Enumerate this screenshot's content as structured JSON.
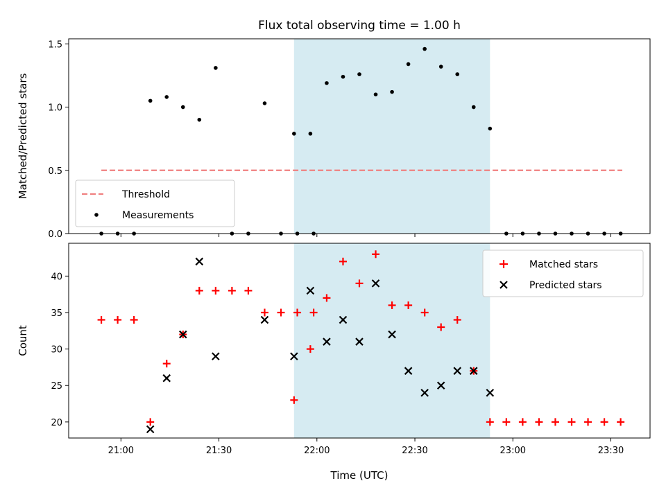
{
  "chart_data": [
    {
      "type": "scatter",
      "title": "Flux total observing time = 1.00 h",
      "ylabel": "Matched/Predicted stars",
      "xlabel": "",
      "x_unit": "HH:MM",
      "xlim": [
        "20:44",
        "23:42"
      ],
      "ylim": [
        0,
        1.54
      ],
      "yticks": [
        0.0,
        0.5,
        1.0,
        1.5
      ],
      "ytick_labels": [
        "0.0",
        "0.5",
        "1.0",
        "1.5"
      ],
      "xticks": [
        "21:00",
        "21:30",
        "22:00",
        "22:30",
        "23:00",
        "23:30"
      ],
      "shaded_region": {
        "x_start": "21:53",
        "x_end": "22:53",
        "color": "#add8e6"
      },
      "legend_position": "lower-left",
      "threshold": {
        "name": "Threshold",
        "value": 0.5,
        "x_start": "20:54",
        "x_end": "23:43",
        "color": "#f08080",
        "style": "dashed"
      },
      "series": [
        {
          "name": "Measurements",
          "color": "#000000",
          "marker": "dot",
          "points": [
            [
              "20:54",
              0
            ],
            [
              "20:59",
              0
            ],
            [
              "21:04",
              0
            ],
            [
              "21:09",
              1.05
            ],
            [
              "21:14",
              1.08
            ],
            [
              "21:19",
              1.0
            ],
            [
              "21:24",
              0.9
            ],
            [
              "21:29",
              1.31
            ],
            [
              "21:34",
              0
            ],
            [
              "21:39",
              0
            ],
            [
              "21:44",
              1.03
            ],
            [
              "21:49",
              0
            ],
            [
              "21:54",
              0
            ],
            [
              "21:59",
              0
            ],
            [
              "21:53",
              0.79
            ],
            [
              "21:58",
              0.79
            ],
            [
              "22:03",
              1.19
            ],
            [
              "22:08",
              1.24
            ],
            [
              "22:13",
              1.26
            ],
            [
              "22:18",
              1.1
            ],
            [
              "22:23",
              1.12
            ],
            [
              "22:28",
              1.34
            ],
            [
              "22:33",
              1.46
            ],
            [
              "22:38",
              1.32
            ],
            [
              "22:43",
              1.26
            ],
            [
              "22:48",
              1.0
            ],
            [
              "22:53",
              0.83
            ],
            [
              "22:58",
              0
            ],
            [
              "23:03",
              0
            ],
            [
              "23:08",
              0
            ],
            [
              "23:13",
              0
            ],
            [
              "23:18",
              0
            ],
            [
              "23:23",
              0
            ],
            [
              "23:28",
              0
            ],
            [
              "23:33",
              0
            ]
          ]
        }
      ],
      "legend": [
        "Threshold",
        "Measurements"
      ]
    },
    {
      "type": "scatter",
      "title": "",
      "ylabel": "Count",
      "xlabel": "Time (UTC)",
      "x_unit": "HH:MM",
      "xlim": [
        "20:44",
        "23:42"
      ],
      "ylim": [
        17.8,
        44.5
      ],
      "yticks": [
        20,
        25,
        30,
        35,
        40
      ],
      "ytick_labels": [
        "20",
        "25",
        "30",
        "35",
        "40"
      ],
      "xticks": [
        "21:00",
        "21:30",
        "22:00",
        "22:30",
        "23:00",
        "23:30"
      ],
      "xtick_labels": [
        "21:00",
        "21:30",
        "22:00",
        "22:30",
        "23:00",
        "23:30"
      ],
      "shaded_region": {
        "x_start": "21:53",
        "x_end": "22:53",
        "color": "#add8e6"
      },
      "legend_position": "upper-right",
      "series": [
        {
          "name": "Matched stars",
          "color": "#ff0000",
          "marker": "plus",
          "points": [
            [
              "20:54",
              34
            ],
            [
              "20:59",
              34
            ],
            [
              "21:04",
              34
            ],
            [
              "21:09",
              20
            ],
            [
              "21:14",
              28
            ],
            [
              "21:19",
              32
            ],
            [
              "21:24",
              38
            ],
            [
              "21:29",
              38
            ],
            [
              "21:34",
              38
            ],
            [
              "21:39",
              38
            ],
            [
              "21:44",
              35
            ],
            [
              "21:49",
              35
            ],
            [
              "21:54",
              35
            ],
            [
              "21:59",
              35
            ],
            [
              "21:53",
              23
            ],
            [
              "21:58",
              30
            ],
            [
              "22:03",
              37
            ],
            [
              "22:08",
              42
            ],
            [
              "22:13",
              39
            ],
            [
              "22:18",
              43
            ],
            [
              "22:23",
              36
            ],
            [
              "22:28",
              36
            ],
            [
              "22:33",
              35
            ],
            [
              "22:38",
              33
            ],
            [
              "22:43",
              34
            ],
            [
              "22:48",
              27
            ],
            [
              "22:53",
              20
            ],
            [
              "22:58",
              20
            ],
            [
              "23:03",
              20
            ],
            [
              "23:08",
              20
            ],
            [
              "23:13",
              20
            ],
            [
              "23:18",
              20
            ],
            [
              "23:23",
              20
            ],
            [
              "23:28",
              20
            ],
            [
              "23:33",
              20
            ]
          ]
        },
        {
          "name": "Predicted stars",
          "color": "#000000",
          "marker": "x",
          "points": [
            [
              "21:09",
              19
            ],
            [
              "21:14",
              26
            ],
            [
              "21:19",
              32
            ],
            [
              "21:24",
              42
            ],
            [
              "21:29",
              29
            ],
            [
              "21:44",
              34
            ],
            [
              "21:53",
              29
            ],
            [
              "21:58",
              38
            ],
            [
              "22:03",
              31
            ],
            [
              "22:08",
              34
            ],
            [
              "22:13",
              31
            ],
            [
              "22:18",
              39
            ],
            [
              "22:23",
              32
            ],
            [
              "22:28",
              27
            ],
            [
              "22:33",
              24
            ],
            [
              "22:38",
              25
            ],
            [
              "22:43",
              27
            ],
            [
              "22:48",
              27
            ],
            [
              "22:53",
              24
            ]
          ]
        }
      ],
      "legend": [
        "Matched stars",
        "Predicted stars"
      ]
    }
  ]
}
